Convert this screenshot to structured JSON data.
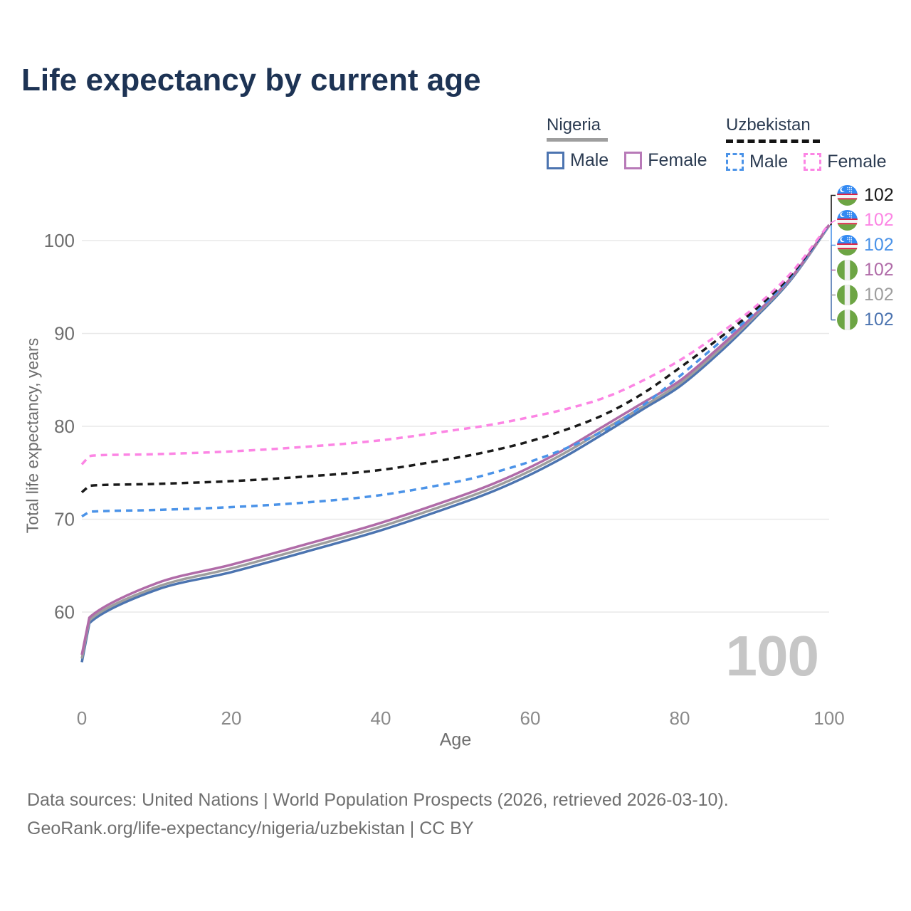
{
  "title": "Life expectancy by current age",
  "legend": {
    "groups": [
      {
        "name": "Nigeria",
        "underline": "solid",
        "underline_color": "#9e9e9e",
        "items": [
          {
            "label": "Male",
            "color": "#4c74b0",
            "dashed": false
          },
          {
            "label": "Female",
            "color": "#b87ab8",
            "dashed": false
          }
        ]
      },
      {
        "name": "Uzbekistan",
        "underline": "dashed",
        "underline_color": "#141414",
        "items": [
          {
            "label": "Male",
            "color": "#4b93e8",
            "dashed": true
          },
          {
            "label": "Female",
            "color": "#fc85e4",
            "dashed": true
          }
        ]
      }
    ]
  },
  "chart_data": {
    "type": "line",
    "title": "Life expectancy by current age",
    "xlabel": "Age",
    "ylabel": "Total life expectancy, years",
    "xlim": [
      0,
      100
    ],
    "ylim": [
      54,
      104
    ],
    "x_ticks": [
      0,
      20,
      40,
      60,
      80,
      100
    ],
    "y_ticks": [
      60,
      70,
      80,
      90,
      100
    ],
    "grid": "horizontal",
    "legend_position": "top-right",
    "x": [
      0,
      1,
      10,
      20,
      30,
      40,
      50,
      55,
      60,
      65,
      70,
      75,
      80,
      85,
      90,
      95,
      100
    ],
    "series": [
      {
        "name": "Nigeria Male",
        "color": "#4c74b0",
        "dashed": false,
        "values": [
          54.6,
          58.8,
          62.4,
          64.3,
          66.5,
          68.8,
          71.5,
          73.0,
          74.8,
          76.9,
          79.3,
          81.8,
          84.3,
          87.7,
          91.6,
          95.9,
          101.6
        ]
      },
      {
        "name": "Nigeria Overall",
        "color": "#9e9e9e",
        "dashed": false,
        "values": [
          55.0,
          59.1,
          62.7,
          64.7,
          66.9,
          69.2,
          71.9,
          73.4,
          75.2,
          77.3,
          79.7,
          82.1,
          84.6,
          88.0,
          91.8,
          96.0,
          101.6
        ]
      },
      {
        "name": "Nigeria Female",
        "color": "#b06ba8",
        "dashed": false,
        "values": [
          55.4,
          59.4,
          63.1,
          65.1,
          67.3,
          69.6,
          72.3,
          73.8,
          75.6,
          77.7,
          80.1,
          82.5,
          84.9,
          88.3,
          92.0,
          96.1,
          101.7
        ]
      },
      {
        "name": "Uzbekistan Male",
        "color": "#4b93e8",
        "dashed": true,
        "values": [
          70.3,
          70.8,
          71.0,
          71.3,
          71.8,
          72.6,
          74.0,
          75.0,
          76.2,
          77.7,
          79.6,
          82.2,
          85.4,
          88.8,
          92.2,
          96.2,
          101.7
        ]
      },
      {
        "name": "Uzbekistan Overall",
        "color": "#1a1a1a",
        "dashed": true,
        "values": [
          72.9,
          73.6,
          73.8,
          74.1,
          74.6,
          75.3,
          76.6,
          77.4,
          78.4,
          79.7,
          81.3,
          83.5,
          86.3,
          89.3,
          92.5,
          96.4,
          101.8
        ]
      },
      {
        "name": "Uzbekistan Female",
        "color": "#fc85e4",
        "dashed": true,
        "values": [
          75.9,
          76.8,
          77.0,
          77.3,
          77.8,
          78.5,
          79.6,
          80.2,
          81.0,
          81.9,
          83.1,
          84.9,
          87.1,
          89.8,
          92.8,
          96.6,
          101.8
        ]
      }
    ]
  },
  "end_labels": [
    {
      "flag": "uzbekistan",
      "value": "102",
      "color": "#1a1a1a"
    },
    {
      "flag": "uzbekistan",
      "value": "102",
      "color": "#fc85e4"
    },
    {
      "flag": "uzbekistan",
      "value": "102",
      "color": "#4b93e8"
    },
    {
      "flag": "nigeria",
      "value": "102",
      "color": "#b06ba8"
    },
    {
      "flag": "nigeria",
      "value": "102",
      "color": "#9e9e9e"
    },
    {
      "flag": "nigeria",
      "value": "102",
      "color": "#4c74b0"
    }
  ],
  "watermark": "100",
  "footer": {
    "line1": "Data sources: United Nations | World Population Prospects (2026, retrieved 2026-03-10).",
    "line2": "GeoRank.org/life-expectancy/nigeria/uzbekistan | CC BY"
  }
}
